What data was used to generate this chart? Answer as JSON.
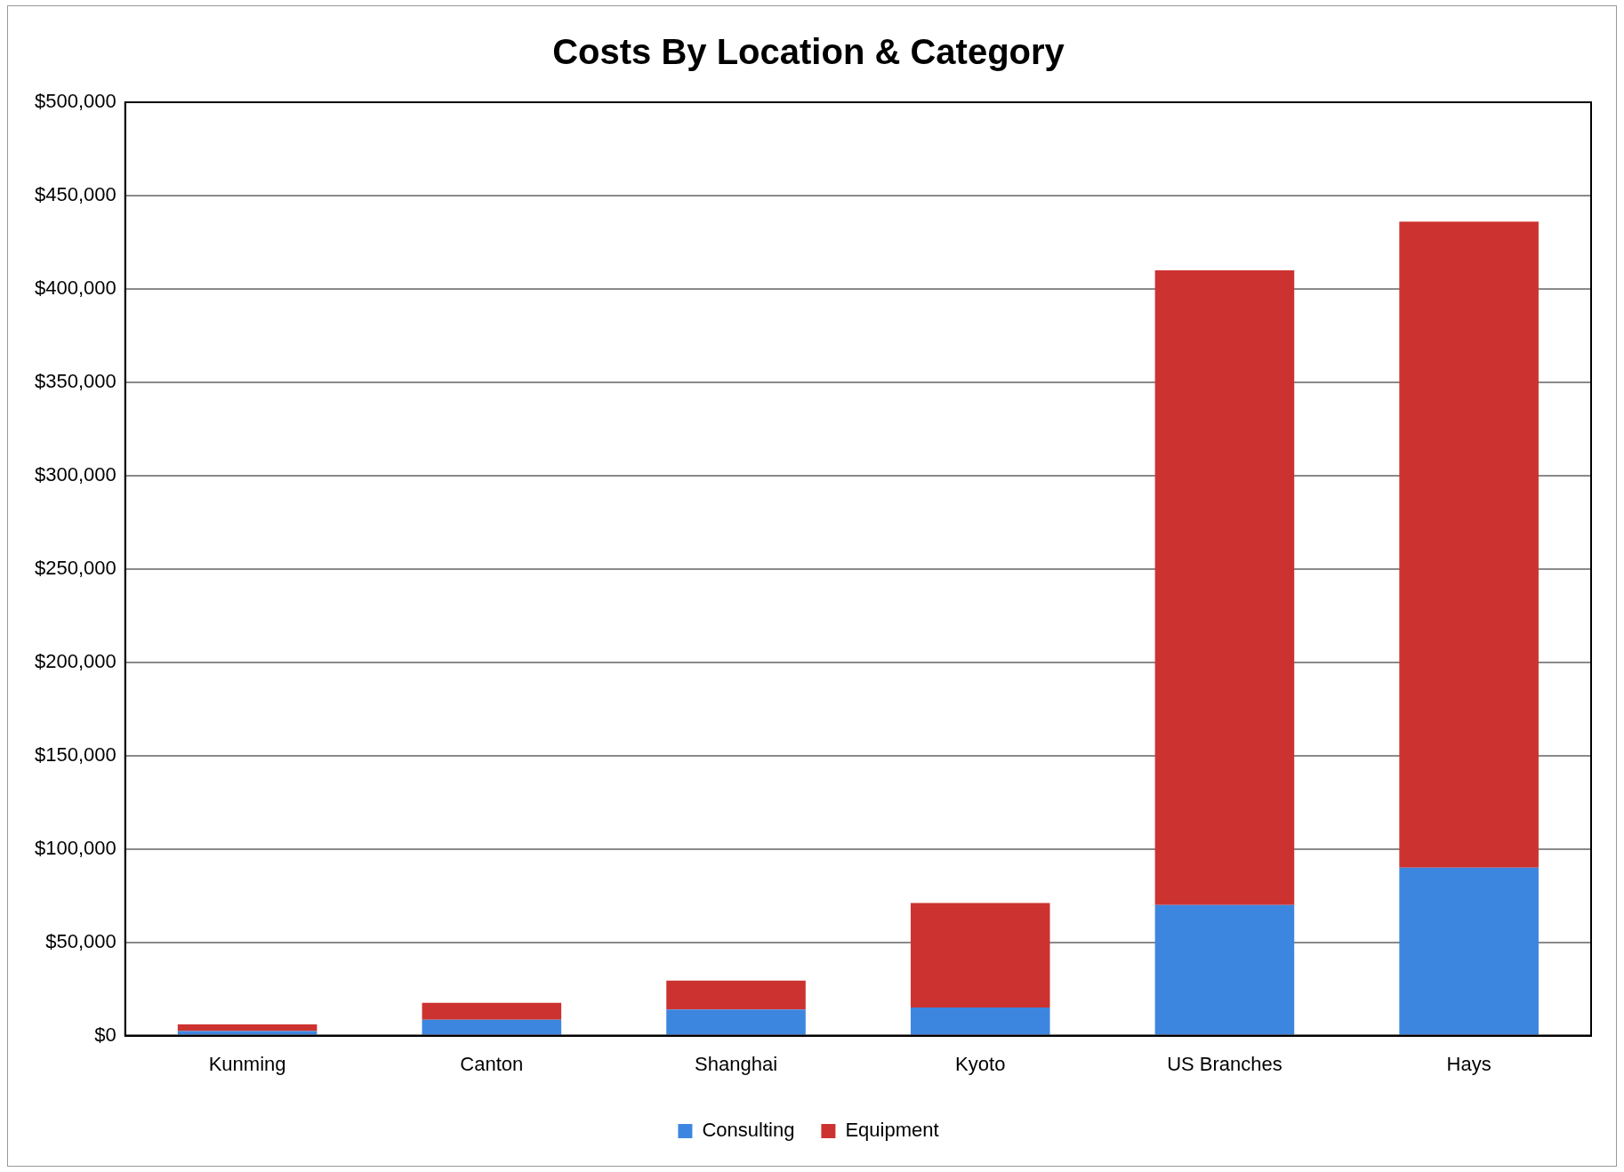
{
  "chart_data": {
    "type": "bar",
    "title": "Costs By Location & Category",
    "categories": [
      "Kunming",
      "Canton",
      "Shanghai",
      "Kyoto",
      "US Branches",
      "Hays"
    ],
    "stacked": true,
    "series": [
      {
        "name": "Consulting",
        "color": "#3d86e0",
        "values": [
          2400,
          8500,
          14000,
          15000,
          70000,
          90000
        ]
      },
      {
        "name": "Equipment",
        "color": "#cc3330",
        "values": [
          3600,
          9000,
          15500,
          56000,
          340000,
          346000
        ]
      }
    ],
    "ylim": [
      0,
      500000
    ],
    "yticks": [
      {
        "value": 0,
        "label": "$0"
      },
      {
        "value": 50000,
        "label": "$50,000"
      },
      {
        "value": 100000,
        "label": "$100,000"
      },
      {
        "value": 150000,
        "label": "$150,000"
      },
      {
        "value": 200000,
        "label": "$200,000"
      },
      {
        "value": 250000,
        "label": "$250,000"
      },
      {
        "value": 300000,
        "label": "$300,000"
      },
      {
        "value": 350000,
        "label": "$350,000"
      },
      {
        "value": 400000,
        "label": "$400,000"
      },
      {
        "value": 450000,
        "label": "$450,000"
      },
      {
        "value": 500000,
        "label": "$500,000"
      }
    ],
    "grid": "y",
    "legend": "bottom"
  }
}
